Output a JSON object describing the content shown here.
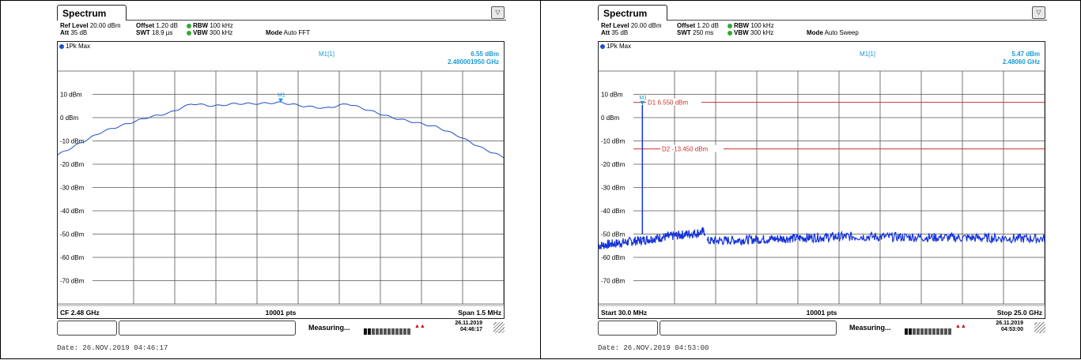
{
  "panels": [
    {
      "tab_label": "Spectrum",
      "settings": {
        "ref_level_label": "Ref Level",
        "ref_level_value": "20.00 dBm",
        "offset_label": "Offset",
        "offset_value": "1.20 dB",
        "rbw_label": "RBW",
        "rbw_value": "100 kHz",
        "att_label": "Att",
        "att_value": "35 dB",
        "swt_label": "SWT",
        "swt_value": "18.9 µs",
        "vbw_label": "VBW",
        "vbw_value": "300 kHz",
        "mode_label": "Mode",
        "mode_value": "Auto FFT"
      },
      "trace_label": "1Pk Max",
      "marker": {
        "name": "M1[1]",
        "level": "6.55 dBm",
        "freq": "2.480001950 GHz",
        "tag": "M1"
      },
      "y_ticks": [
        "10 dBm",
        "0 dBm",
        "-10 dBm",
        "-20 dBm",
        "-30 dBm",
        "-40 dBm",
        "-50 dBm",
        "-60 dBm",
        "-70 dBm"
      ],
      "x_start_label": "CF 2.48 GHz",
      "points_label": "10001 pts",
      "x_end_label": "Span 1.5 MHz",
      "status": "Measuring...",
      "status_date": "26.11.2019",
      "status_time": "04:46:17",
      "footer": "Date: 26.NOV.2019  04:46:17",
      "trace_color": "#1d50c8",
      "chart_data": {
        "type": "line",
        "ylim": [
          -80,
          20
        ],
        "x": [
          0,
          0.05,
          0.1,
          0.15,
          0.2,
          0.25,
          0.3,
          0.35,
          0.4,
          0.45,
          0.5,
          0.55,
          0.6,
          0.65,
          0.7,
          0.75,
          0.8,
          0.85,
          0.9,
          0.95,
          1.0
        ],
        "values": [
          -16,
          -11,
          -6,
          -3,
          0,
          2,
          6,
          5,
          6,
          6,
          6.5,
          5,
          4,
          6,
          3,
          0,
          -2,
          -4,
          -8,
          -13,
          -17
        ]
      }
    },
    {
      "tab_label": "Spectrum",
      "settings": {
        "ref_level_label": "Ref Level",
        "ref_level_value": "20.00 dBm",
        "offset_label": "Offset",
        "offset_value": "1.20 dB",
        "rbw_label": "RBW",
        "rbw_value": "100 kHz",
        "att_label": "Att",
        "att_value": "35 dB",
        "swt_label": "SWT",
        "swt_value": "250 ms",
        "vbw_label": "VBW",
        "vbw_value": "300 kHz",
        "mode_label": "Mode",
        "mode_value": "Auto Sweep"
      },
      "trace_label": "1Pk Max",
      "marker": {
        "name": "M1[1]",
        "level": "5.47 dBm",
        "freq": "2.48060 GHz",
        "tag": "M1"
      },
      "lines": [
        {
          "label": "D1  6.550 dBm",
          "value": 6.55
        },
        {
          "label": "D2  -13.450 dBm",
          "value": -13.45
        }
      ],
      "y_ticks": [
        "10 dBm",
        "0 dBm",
        "-10 dBm",
        "-20 dBm",
        "-30 dBm",
        "-40 dBm",
        "-50 dBm",
        "-60 dBm",
        "-70 dBm"
      ],
      "x_start_label": "Start 30.0 MHz",
      "points_label": "10001 pts",
      "x_end_label": "Stop 25.0 GHz",
      "status": "Measuring...",
      "status_date": "26.11.2019",
      "status_time": "04:53:00",
      "footer": "Date: 26.NOV.2019  04:53:00",
      "trace_color": "#1533d8",
      "line_color": "#d03030",
      "chart_data": {
        "type": "line",
        "ylim": [
          -80,
          20
        ],
        "xlim": [
          0.03,
          25.0
        ],
        "spike": {
          "x": 2.48,
          "value": 5.47
        },
        "segments": [
          {
            "x": [
              0.03,
              6.0
            ],
            "values": [
              -55,
              -49
            ]
          },
          {
            "x": [
              6.1,
              14.0
            ],
            "values": [
              -53,
              -51
            ]
          },
          {
            "x": [
              14.0,
              25.0
            ],
            "values": [
              -51,
              -52
            ]
          }
        ]
      }
    }
  ]
}
